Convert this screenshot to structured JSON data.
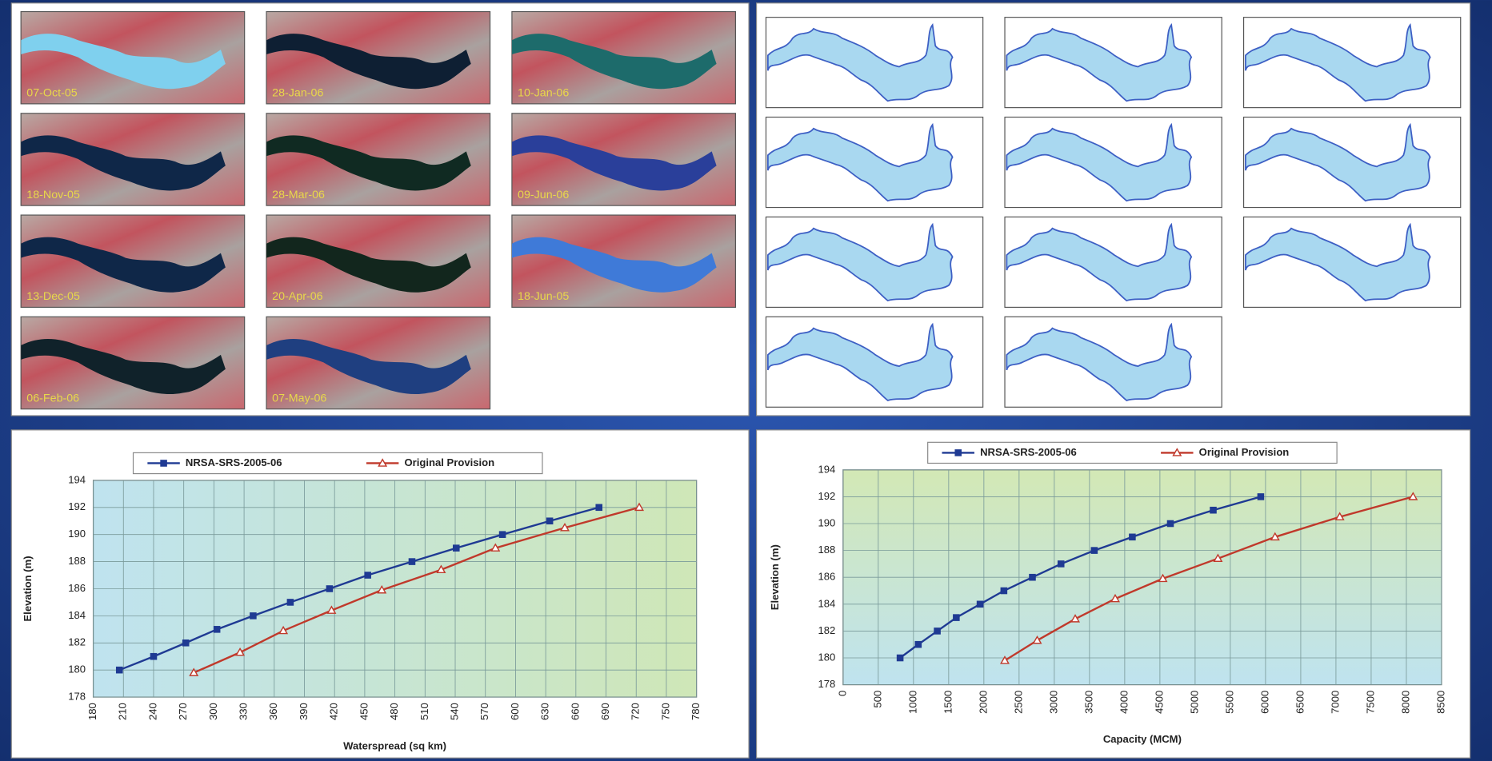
{
  "satellite_images": [
    "07-Oct-05",
    "28-Jan-06",
    "10-Jan-06",
    "18-Nov-05",
    "28-Mar-06",
    "09-Jun-06",
    "13-Dec-05",
    "20-Apr-06",
    "18-Jun-05",
    "06-Feb-06",
    "07-May-06"
  ],
  "chart_data": [
    {
      "type": "line",
      "xlabel": "Waterspread (sq km)",
      "ylabel": "Elevation (m)",
      "xlim": [
        180,
        780
      ],
      "xticks": [
        180,
        210,
        240,
        270,
        300,
        330,
        360,
        390,
        420,
        450,
        480,
        510,
        540,
        570,
        600,
        630,
        660,
        690,
        720,
        750,
        780
      ],
      "ylim": [
        178,
        194
      ],
      "yticks": [
        178,
        180,
        182,
        184,
        186,
        188,
        190,
        192,
        194
      ],
      "grid": true,
      "series": [
        {
          "name": "NRSA-SRS-2005-06",
          "color": "#1f3a93",
          "marker": "square",
          "x": [
            206,
            240,
            272,
            303,
            339,
            376,
            415,
            453,
            497,
            541,
            587,
            634,
            683
          ],
          "values": [
            180,
            181,
            182,
            183,
            184,
            185,
            186,
            187,
            188,
            189,
            190,
            191,
            192
          ]
        },
        {
          "name": "Original Provision",
          "color": "#c0392b",
          "marker": "triangle",
          "x": [
            280,
            326,
            369,
            417,
            467,
            526,
            580,
            649,
            723
          ],
          "values": [
            179.8,
            181.3,
            182.9,
            184.4,
            185.9,
            187.4,
            189,
            190.5,
            192
          ]
        }
      ]
    },
    {
      "type": "line",
      "xlabel": "Capacity (MCM)",
      "ylabel": "Elevation (m)",
      "xlim": [
        0,
        8500
      ],
      "xticks": [
        0,
        500,
        1000,
        1500,
        2000,
        2500,
        3000,
        3500,
        4000,
        4500,
        5000,
        5500,
        6000,
        6500,
        7000,
        7500,
        8000,
        8500
      ],
      "ylim": [
        178,
        194
      ],
      "yticks": [
        178,
        180,
        182,
        184,
        186,
        188,
        190,
        192,
        194
      ],
      "grid": true,
      "series": [
        {
          "name": "NRSA-SRS-2005-06",
          "color": "#1f3a93",
          "marker": "square",
          "x": [
            810,
            1068,
            1338,
            1608,
            1946,
            2284,
            2689,
            3095,
            3568,
            4108,
            4649,
            5257,
            5932
          ],
          "values": [
            180,
            181,
            182,
            183,
            184,
            185,
            186,
            187,
            188,
            189,
            190,
            191,
            192
          ]
        },
        {
          "name": "Original Provision",
          "color": "#c0392b",
          "marker": "triangle",
          "x": [
            2297,
            2757,
            3297,
            3865,
            4541,
            5324,
            6135,
            7054,
            8095
          ],
          "values": [
            179.8,
            181.3,
            182.9,
            184.4,
            185.9,
            187.4,
            189,
            190.5,
            192
          ]
        }
      ]
    }
  ]
}
